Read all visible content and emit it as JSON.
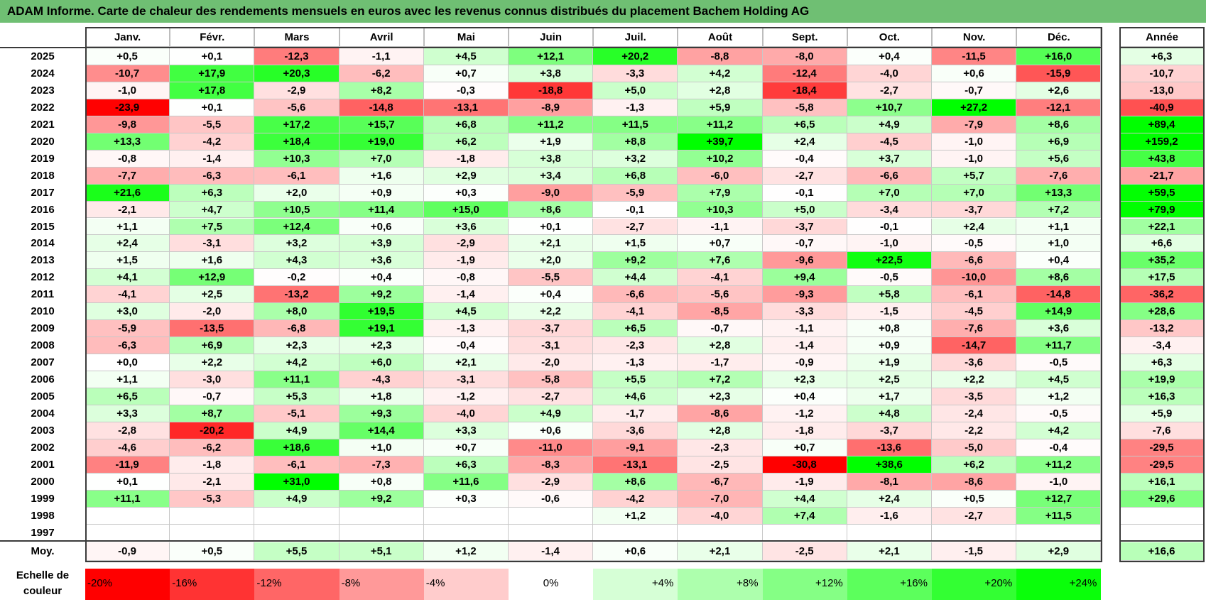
{
  "title": "ADAM Informe. Carte de chaleur des rendements mensuels en euros avec les revenus connus distribués du placement Bachem Holding AG",
  "chart_data": {
    "type": "heatmap",
    "title": "ADAM Informe. Carte de chaleur des rendements mensuels en euros avec les revenus connus distribués du placement Bachem Holding AG",
    "columns": [
      "Janv.",
      "Févr.",
      "Mars",
      "Avril",
      "Mai",
      "Juin",
      "Juil.",
      "Août",
      "Sept.",
      "Oct.",
      "Nov.",
      "Déc."
    ],
    "year_column_label": "Année",
    "rows": [
      {
        "year": "2025",
        "values": [
          "+0,5",
          "+0,1",
          "-12,3",
          "-1,1",
          "+4,5",
          "+12,1",
          "+20,2",
          "-8,8",
          "-8,0",
          "+0,4",
          "-11,5",
          "+16,0"
        ],
        "annual": "+6,3"
      },
      {
        "year": "2024",
        "values": [
          "-10,7",
          "+17,9",
          "+20,3",
          "-6,2",
          "+0,7",
          "+3,8",
          "-3,3",
          "+4,2",
          "-12,4",
          "-4,0",
          "+0,6",
          "-15,9"
        ],
        "annual": "-10,7"
      },
      {
        "year": "2023",
        "values": [
          "-1,0",
          "+17,8",
          "-2,9",
          "+8,2",
          "-0,3",
          "-18,8",
          "+5,0",
          "+2,8",
          "-18,4",
          "-2,7",
          "-0,7",
          "+2,6"
        ],
        "annual": "-13,0"
      },
      {
        "year": "2022",
        "values": [
          "-23,9",
          "+0,1",
          "-5,6",
          "-14,8",
          "-13,1",
          "-8,9",
          "-1,3",
          "+5,9",
          "-5,8",
          "+10,7",
          "+27,2",
          "-12,1"
        ],
        "annual": "-40,9"
      },
      {
        "year": "2021",
        "values": [
          "-9,8",
          "-5,5",
          "+17,2",
          "+15,7",
          "+6,8",
          "+11,2",
          "+11,5",
          "+11,2",
          "+6,5",
          "+4,9",
          "-7,9",
          "+8,6"
        ],
        "annual": "+89,4"
      },
      {
        "year": "2020",
        "values": [
          "+13,3",
          "-4,2",
          "+18,4",
          "+19,0",
          "+6,2",
          "+1,9",
          "+8,8",
          "+39,7",
          "+2,4",
          "-4,5",
          "-1,0",
          "+6,9"
        ],
        "annual": "+159,2"
      },
      {
        "year": "2019",
        "values": [
          "-0,8",
          "-1,4",
          "+10,3",
          "+7,0",
          "-1,8",
          "+3,8",
          "+3,2",
          "+10,2",
          "-0,4",
          "+3,7",
          "-1,0",
          "+5,6"
        ],
        "annual": "+43,8"
      },
      {
        "year": "2018",
        "values": [
          "-7,7",
          "-6,3",
          "-6,1",
          "+1,6",
          "+2,9",
          "+3,4",
          "+6,8",
          "-6,0",
          "-2,7",
          "-6,6",
          "+5,7",
          "-7,6"
        ],
        "annual": "-21,7"
      },
      {
        "year": "2017",
        "values": [
          "+21,6",
          "+6,3",
          "+2,0",
          "+0,9",
          "+0,3",
          "-9,0",
          "-5,9",
          "+7,9",
          "-0,1",
          "+7,0",
          "+7,0",
          "+13,3"
        ],
        "annual": "+59,5"
      },
      {
        "year": "2016",
        "values": [
          "-2,1",
          "+4,7",
          "+10,5",
          "+11,4",
          "+15,0",
          "+8,6",
          "-0,1",
          "+10,3",
          "+5,0",
          "-3,4",
          "-3,7",
          "+7,2"
        ],
        "annual": "+79,9"
      },
      {
        "year": "2015",
        "values": [
          "+1,1",
          "+7,5",
          "+12,4",
          "+0,6",
          "+3,6",
          "+0,1",
          "-2,7",
          "-1,1",
          "-3,7",
          "-0,1",
          "+2,4",
          "+1,1"
        ],
        "annual": "+22,1"
      },
      {
        "year": "2014",
        "values": [
          "+2,4",
          "-3,1",
          "+3,2",
          "+3,9",
          "-2,9",
          "+2,1",
          "+1,5",
          "+0,7",
          "-0,7",
          "-1,0",
          "-0,5",
          "+1,0"
        ],
        "annual": "+6,6"
      },
      {
        "year": "2013",
        "values": [
          "+1,5",
          "+1,6",
          "+4,3",
          "+3,6",
          "-1,9",
          "+2,0",
          "+9,2",
          "+7,6",
          "-9,6",
          "+22,5",
          "-6,6",
          "+0,4"
        ],
        "annual": "+35,2"
      },
      {
        "year": "2012",
        "values": [
          "+4,1",
          "+12,9",
          "-0,2",
          "+0,4",
          "-0,8",
          "-5,5",
          "+4,4",
          "-4,1",
          "+9,4",
          "-0,5",
          "-10,0",
          "+8,6"
        ],
        "annual": "+17,5"
      },
      {
        "year": "2011",
        "values": [
          "-4,1",
          "+2,5",
          "-13,2",
          "+9,2",
          "-1,4",
          "+0,4",
          "-6,6",
          "-5,6",
          "-9,3",
          "+5,8",
          "-6,1",
          "-14,8"
        ],
        "annual": "-36,2"
      },
      {
        "year": "2010",
        "values": [
          "+3,0",
          "-2,0",
          "+8,0",
          "+19,5",
          "+4,5",
          "+2,2",
          "-4,1",
          "-8,5",
          "-3,3",
          "-1,5",
          "-4,5",
          "+14,9"
        ],
        "annual": "+28,6"
      },
      {
        "year": "2009",
        "values": [
          "-5,9",
          "-13,5",
          "-6,8",
          "+19,1",
          "-1,3",
          "-3,7",
          "+6,5",
          "-0,7",
          "-1,1",
          "+0,8",
          "-7,6",
          "+3,6"
        ],
        "annual": "-13,2"
      },
      {
        "year": "2008",
        "values": [
          "-6,3",
          "+6,9",
          "+2,3",
          "+2,3",
          "-0,4",
          "-3,1",
          "-2,3",
          "+2,8",
          "-1,4",
          "+0,9",
          "-14,7",
          "+11,7"
        ],
        "annual": "-3,4"
      },
      {
        "year": "2007",
        "values": [
          "+0,0",
          "+2,2",
          "+4,2",
          "+6,0",
          "+2,1",
          "-2,0",
          "-1,3",
          "-1,7",
          "-0,9",
          "+1,9",
          "-3,6",
          "-0,5"
        ],
        "annual": "+6,3"
      },
      {
        "year": "2006",
        "values": [
          "+1,1",
          "-3,0",
          "+11,1",
          "-4,3",
          "-3,1",
          "-5,8",
          "+5,5",
          "+7,2",
          "+2,3",
          "+2,5",
          "+2,2",
          "+4,5"
        ],
        "annual": "+19,9"
      },
      {
        "year": "2005",
        "values": [
          "+6,5",
          "-0,7",
          "+5,3",
          "+1,8",
          "-1,2",
          "-2,7",
          "+4,6",
          "+2,3",
          "+0,4",
          "+1,7",
          "-3,5",
          "+1,2"
        ],
        "annual": "+16,3"
      },
      {
        "year": "2004",
        "values": [
          "+3,3",
          "+8,7",
          "-5,1",
          "+9,3",
          "-4,0",
          "+4,9",
          "-1,7",
          "-8,6",
          "-1,2",
          "+4,8",
          "-2,4",
          "-0,5"
        ],
        "annual": "+5,9"
      },
      {
        "year": "2003",
        "values": [
          "-2,8",
          "-20,2",
          "+4,9",
          "+14,4",
          "+3,3",
          "+0,6",
          "-3,6",
          "+2,8",
          "-1,8",
          "-3,7",
          "-2,2",
          "+4,2"
        ],
        "annual": "-7,6"
      },
      {
        "year": "2002",
        "values": [
          "-4,6",
          "-6,2",
          "+18,6",
          "+1,0",
          "+0,7",
          "-11,0",
          "-9,1",
          "-2,3",
          "+0,7",
          "-13,6",
          "-5,0",
          "-0,4"
        ],
        "annual": "-29,5"
      },
      {
        "year": "2001",
        "values": [
          "-11,9",
          "-1,8",
          "-6,1",
          "-7,3",
          "+6,3",
          "-8,3",
          "-13,1",
          "-2,5",
          "-30,8",
          "+38,6",
          "+6,2",
          "+11,2"
        ],
        "annual": "-29,5"
      },
      {
        "year": "2000",
        "values": [
          "+0,1",
          "-2,1",
          "+31,0",
          "+0,8",
          "+11,6",
          "-2,9",
          "+8,6",
          "-6,7",
          "-1,9",
          "-8,1",
          "-8,6",
          "-1,0"
        ],
        "annual": "+16,1"
      },
      {
        "year": "1999",
        "values": [
          "+11,1",
          "-5,3",
          "+4,9",
          "+9,2",
          "+0,3",
          "-0,6",
          "-4,2",
          "-7,0",
          "+4,4",
          "+2,4",
          "+0,5",
          "+12,7"
        ],
        "annual": "+29,6"
      },
      {
        "year": "1998",
        "values": [
          "",
          "",
          "",
          "",
          "",
          "",
          "+1,2",
          "-4,0",
          "+7,4",
          "-1,6",
          "-2,7",
          "+11,5"
        ],
        "annual": ""
      },
      {
        "year": "1997",
        "values": [
          "",
          "",
          "",
          "",
          "",
          "",
          "",
          "",
          "",
          "",
          "",
          ""
        ],
        "annual": ""
      }
    ],
    "average_row": {
      "label": "Moy.",
      "values": [
        "-0,9",
        "+0,5",
        "+5,5",
        "+5,1",
        "+1,2",
        "-1,4",
        "+0,6",
        "+2,1",
        "-2,5",
        "+2,1",
        "-1,5",
        "+2,9"
      ],
      "annual": "+16,6"
    },
    "color_scale": {
      "label": "Echelle de couleur",
      "stops": [
        {
          "label": "-20%",
          "value": -20,
          "color": "#ff0000"
        },
        {
          "label": "-16%",
          "value": -16,
          "color": "#ff3333"
        },
        {
          "label": "-12%",
          "value": -12,
          "color": "#ff6666"
        },
        {
          "label": "-8%",
          "value": -8,
          "color": "#ff9999"
        },
        {
          "label": "-4%",
          "value": -4,
          "color": "#ffcccc"
        },
        {
          "label": "0%",
          "value": 0,
          "color": "#ffffff"
        },
        {
          "label": "+4%",
          "value": 4,
          "color": "#d6ffd6"
        },
        {
          "label": "+8%",
          "value": 8,
          "color": "#adffad"
        },
        {
          "label": "+12%",
          "value": 12,
          "color": "#85ff85"
        },
        {
          "label": "+16%",
          "value": 16,
          "color": "#5cff5c"
        },
        {
          "label": "+20%",
          "value": 20,
          "color": "#33ff33"
        },
        {
          "label": "+24%",
          "value": 24,
          "color": "#0aff0a"
        }
      ]
    }
  }
}
